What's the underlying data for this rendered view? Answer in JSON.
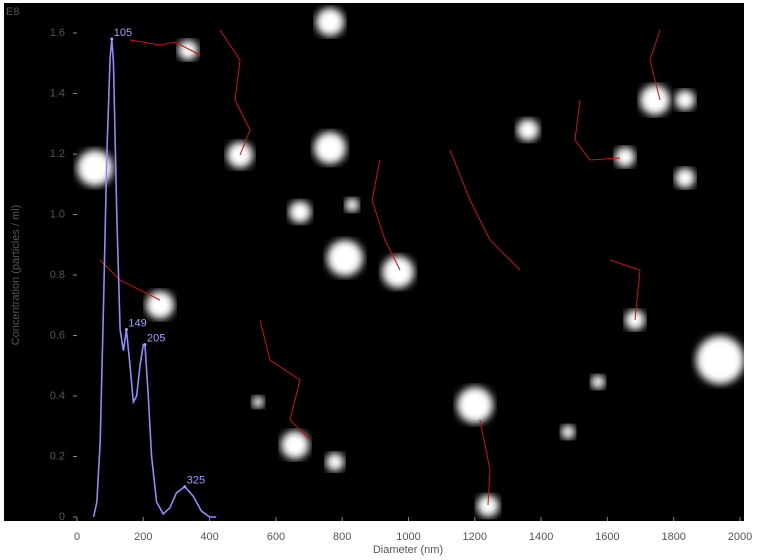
{
  "chart_data": {
    "type": "line",
    "y_multiplier": "E8",
    "x_label": "Diameter (nm)",
    "y_label": "Concentration (particles / ml)",
    "x": [
      50,
      60,
      70,
      80,
      90,
      100,
      105,
      110,
      120,
      130,
      140,
      149,
      160,
      170,
      180,
      190,
      200,
      205,
      215,
      225,
      240,
      260,
      280,
      300,
      325,
      350,
      375,
      400,
      420
    ],
    "series": [
      {
        "color": "#8c8cff",
        "values": [
          0,
          0.05,
          0.25,
          0.7,
          1.2,
          1.52,
          1.58,
          1.5,
          1.0,
          0.62,
          0.55,
          0.62,
          0.5,
          0.38,
          0.4,
          0.5,
          0.57,
          0.57,
          0.4,
          0.2,
          0.05,
          0.01,
          0.03,
          0.08,
          0.1,
          0.07,
          0.02,
          0,
          0
        ]
      }
    ],
    "annotations": [
      {
        "text": "105",
        "x": 105,
        "y": 1.58
      },
      {
        "text": "149",
        "x": 149,
        "y": 0.62
      },
      {
        "text": "205",
        "x": 205,
        "y": 0.57
      },
      {
        "text": "325",
        "x": 325,
        "y": 0.1
      }
    ],
    "xlim": [
      0,
      2000
    ],
    "ylim": [
      0,
      1.6
    ],
    "xticks": [
      0,
      200,
      400,
      600,
      800,
      1000,
      1200,
      1400,
      1600,
      1800,
      2000
    ],
    "yticks": [
      0,
      0.2,
      0.4,
      0.6,
      0.8,
      {
        "value": 1,
        "label": "1.0"
      },
      1.2,
      1.4,
      1.6
    ]
  }
}
